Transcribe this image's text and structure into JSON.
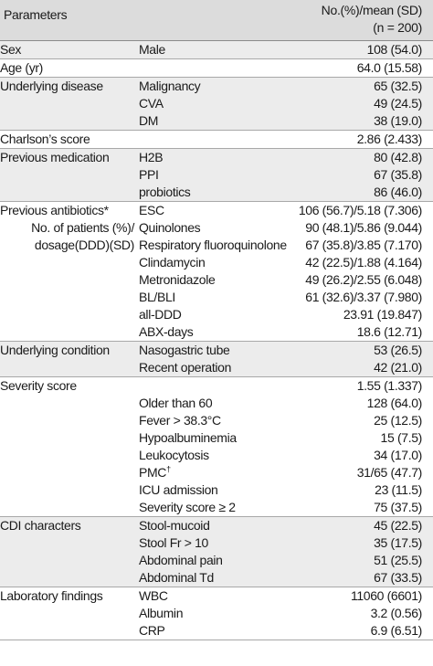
{
  "header": {
    "parameters": "Parameters",
    "value_line1": "No.(%)/mean (SD)",
    "value_line2": "(n = 200)"
  },
  "groups": [
    {
      "shaded": true,
      "rows": [
        {
          "param": "Sex",
          "item": "Male",
          "value": "108 (54.0)"
        }
      ]
    },
    {
      "shaded": false,
      "rows": [
        {
          "param": "Age (yr)",
          "item": "",
          "value": "64.0 (15.58)"
        }
      ]
    },
    {
      "shaded": true,
      "rows": [
        {
          "param": "Underlying disease",
          "item": "Malignancy",
          "value": "65 (32.5)"
        },
        {
          "param": "",
          "item": "CVA",
          "value": "49 (24.5)"
        },
        {
          "param": "",
          "item": "DM",
          "value": "38 (19.0)"
        }
      ]
    },
    {
      "shaded": false,
      "rows": [
        {
          "param": "Charlson’s score",
          "item": "",
          "value": "2.86 (2.433)"
        }
      ]
    },
    {
      "shaded": true,
      "rows": [
        {
          "param": "Previous medication",
          "item": "H2B",
          "value": "80 (42.8)"
        },
        {
          "param": "",
          "item": "PPI",
          "value": "67 (35.8)"
        },
        {
          "param": "",
          "item": "probiotics",
          "value": "86 (46.0)"
        }
      ]
    },
    {
      "shaded": false,
      "rows": [
        {
          "param": "Previous antibiotics*",
          "item": "ESC",
          "value": "106 (56.7)/5.18 (7.306)"
        },
        {
          "param": "No. of patients (%)/",
          "param_align": "right",
          "item": "Quinolones",
          "value": "90 (48.1)/5.86 (9.044)"
        },
        {
          "param": "dosage(DDD)(SD)",
          "param_align": "right",
          "item": "Respiratory fluoroquinolone",
          "value": "67 (35.8)/3.85 (7.170)"
        },
        {
          "param": "",
          "item": "Clindamycin",
          "value": "42 (22.5)/1.88 (4.164)"
        },
        {
          "param": "",
          "item": "Metronidazole",
          "value": "49 (26.2)/2.55 (6.048)"
        },
        {
          "param": "",
          "item": "BL/BLI",
          "value": "61 (32.6)/3.37 (7.980)"
        },
        {
          "param": "",
          "item": "all-DDD",
          "value": "23.91 (19.847)"
        },
        {
          "param": "",
          "item": "ABX-days",
          "value": "18.6 (12.71)"
        }
      ]
    },
    {
      "shaded": true,
      "rows": [
        {
          "param": "Underlying condition",
          "item": "Nasogastric tube",
          "value": "53 (26.5)"
        },
        {
          "param": "",
          "item": "Recent operation",
          "value": "42 (21.0)"
        }
      ]
    },
    {
      "shaded": false,
      "rows": [
        {
          "param": "Severity score",
          "item": "",
          "value": "1.55 (1.337)"
        },
        {
          "param": "",
          "item": "Older than 60",
          "value": "128 (64.0)"
        },
        {
          "param": "",
          "item": "Fever > 38.3°C",
          "value": "25 (12.5)"
        },
        {
          "param": "",
          "item": "Hypoalbuminemia",
          "value": "15 (7.5)"
        },
        {
          "param": "",
          "item": "Leukocytosis",
          "value": "34 (17.0)"
        },
        {
          "param": "",
          "item": "PMC",
          "item_sup": "†",
          "value": "31/65 (47.7)"
        },
        {
          "param": "",
          "item": "ICU admission",
          "value": "23 (11.5)"
        },
        {
          "param": "",
          "item": "Severity score ≥ 2",
          "value": "75 (37.5)"
        }
      ]
    },
    {
      "shaded": true,
      "rows": [
        {
          "param": "CDI characters",
          "item": "Stool-mucoid",
          "value": "45 (22.5)"
        },
        {
          "param": "",
          "item": "Stool Fr > 10",
          "value": "35 (17.5)"
        },
        {
          "param": "",
          "item": "Abdominal pain",
          "value": "51 (25.5)"
        },
        {
          "param": "",
          "item": "Abdominal Td",
          "value": "67 (33.5)"
        }
      ]
    },
    {
      "shaded": false,
      "rows": [
        {
          "param": "Laboratory findings",
          "item": "WBC",
          "value": "11060 (6601)"
        },
        {
          "param": "",
          "item": "Albumin",
          "value": "3.2 (0.56)"
        },
        {
          "param": "",
          "item": "CRP",
          "value": "6.9 (6.51)"
        }
      ]
    }
  ]
}
